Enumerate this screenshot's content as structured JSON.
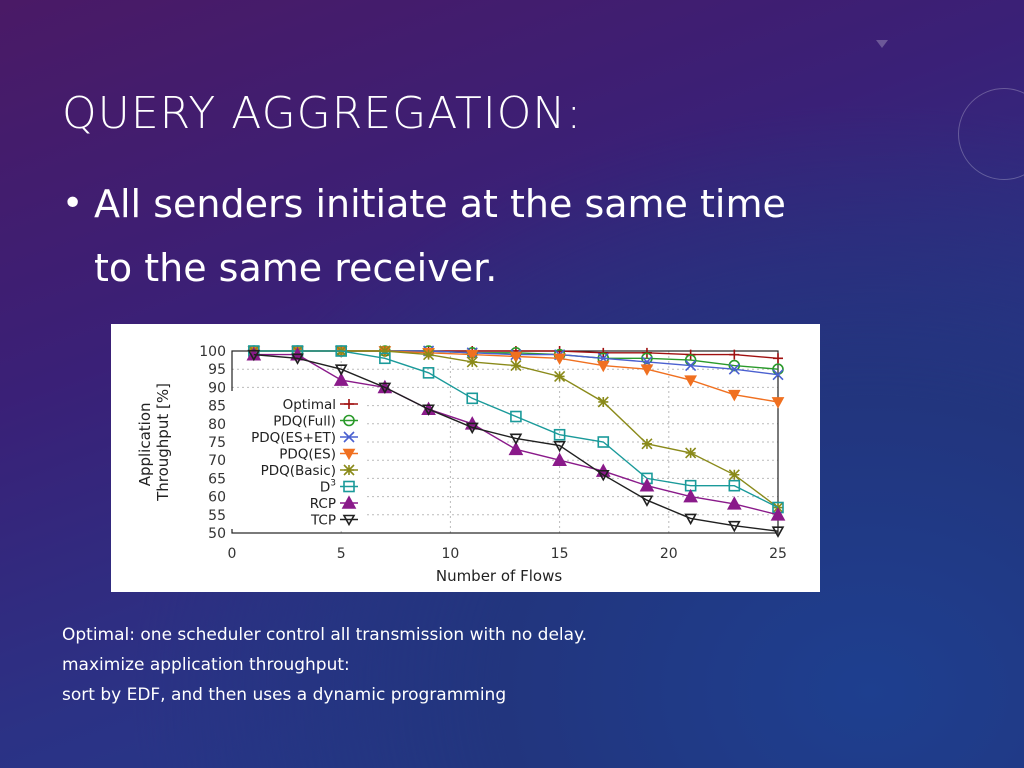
{
  "slide": {
    "title": "QUERY AGGREGATION:",
    "bullet": "All senders initiate at the same time to the same receiver.",
    "notes": [
      "Optimal: one scheduler control all transmission with no delay.",
      "maximize application throughput:",
      "sort by EDF, and then uses a dynamic programming"
    ]
  },
  "chart_data": {
    "type": "line",
    "xlabel": "Number of Flows",
    "ylabel": "Application Throughput [%]",
    "xlim": [
      0,
      25
    ],
    "ylim": [
      50,
      100
    ],
    "xticks": [
      0,
      5,
      10,
      15,
      20,
      25
    ],
    "yticks": [
      50,
      55,
      60,
      65,
      70,
      75,
      80,
      85,
      90,
      95,
      100
    ],
    "x": [
      1,
      3,
      5,
      7,
      9,
      11,
      13,
      15,
      17,
      19,
      21,
      23,
      25
    ],
    "legend_position": "left",
    "series": [
      {
        "name": "Optimal",
        "color": "#a01010",
        "marker": "plus",
        "values": [
          100,
          100,
          100,
          100,
          100,
          100,
          100,
          100,
          99.5,
          99.5,
          99,
          99,
          98
        ]
      },
      {
        "name": "PDQ(Full)",
        "color": "#2a9a2a",
        "marker": "circle",
        "values": [
          100,
          100,
          100,
          100,
          100,
          99.5,
          99.5,
          99,
          98,
          98,
          97.5,
          96,
          95
        ]
      },
      {
        "name": "PDQ(ES+ET)",
        "color": "#4a60d0",
        "marker": "x",
        "values": [
          100,
          100,
          100,
          100,
          100,
          99.5,
          99,
          99,
          98,
          97,
          96,
          95,
          93.5
        ]
      },
      {
        "name": "PDQ(ES)",
        "color": "#f07020",
        "marker": "tri-down",
        "values": [
          100,
          100,
          100,
          100,
          99.5,
          99,
          98.5,
          98,
          96,
          95,
          92,
          88,
          86
        ]
      },
      {
        "name": "PDQ(Basic)",
        "color": "#8a8a1a",
        "marker": "asterisk",
        "values": [
          100,
          100,
          100,
          100,
          99,
          97,
          96,
          93,
          86,
          74.5,
          72,
          66,
          57
        ]
      },
      {
        "name": "D3",
        "color": "#1a9a9a",
        "marker": "square",
        "values": [
          100,
          100,
          100,
          98,
          94,
          87,
          82,
          77,
          75,
          65,
          63,
          63,
          57
        ]
      },
      {
        "name": "RCP",
        "color": "#8a1a8a",
        "marker": "tri-up",
        "values": [
          99,
          99,
          92,
          90,
          84,
          80,
          73,
          70,
          67,
          63,
          60,
          58,
          55
        ]
      },
      {
        "name": "TCP",
        "color": "#202020",
        "marker": "tri-down-open",
        "values": [
          99,
          98,
          95,
          90,
          84,
          79,
          76,
          74,
          66,
          59,
          54,
          52,
          50.5
        ]
      }
    ]
  }
}
